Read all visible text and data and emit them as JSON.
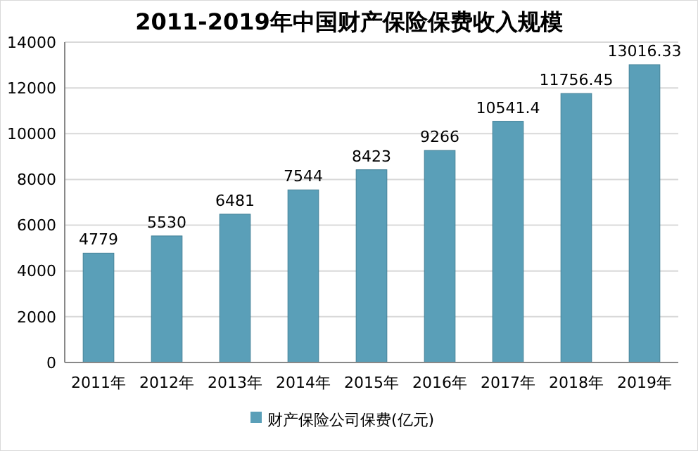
{
  "chart_data": {
    "type": "bar",
    "title": "2011-2019年中国财产保险保费收入规模",
    "categories": [
      "2011年",
      "2012年",
      "2013年",
      "2014年",
      "2015年",
      "2016年",
      "2017年",
      "2018年",
      "2019年"
    ],
    "series": [
      {
        "name": "财产保险公司保费(亿元)",
        "color": "#5a9fb8",
        "values": [
          4779,
          5530,
          6481,
          7544,
          8423,
          9266,
          10541.4,
          11756.45,
          13016.33
        ]
      }
    ],
    "ylim": [
      0,
      14000
    ],
    "yticks": [
      0,
      2000,
      4000,
      6000,
      8000,
      10000,
      12000,
      14000
    ],
    "grid": "y",
    "legend": "bottom",
    "data_labels": true
  }
}
